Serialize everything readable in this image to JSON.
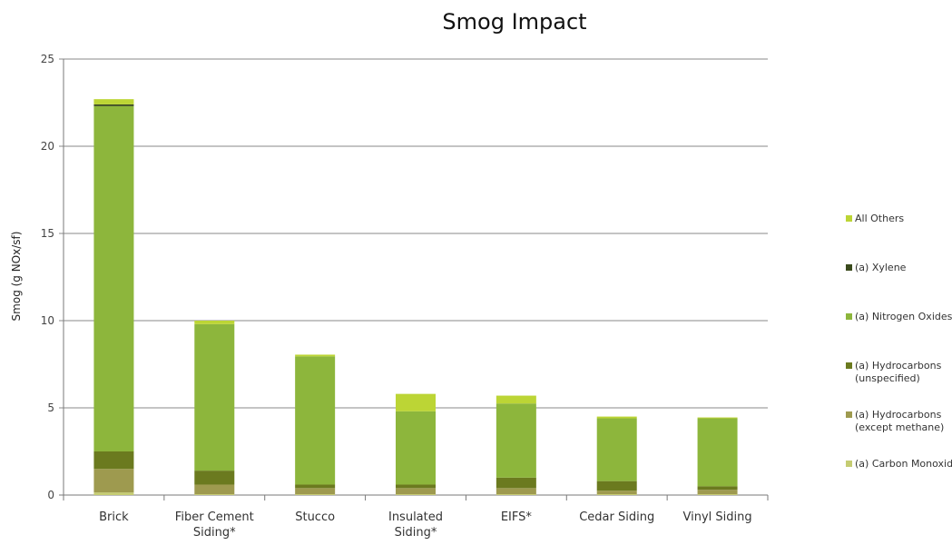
{
  "chart_data": {
    "type": "bar",
    "stacked": true,
    "title": "Smog Impact",
    "xlabel": "",
    "ylabel": "Smog (g NOx/sf)",
    "ylim": [
      0,
      25
    ],
    "yticks": [
      "0",
      "5",
      "10",
      "15",
      "20",
      "25"
    ],
    "grid": true,
    "legend_position": "right",
    "categories": [
      [
        "Brick"
      ],
      [
        "Fiber  Cement",
        "Siding*"
      ],
      [
        "Stucco"
      ],
      [
        "Insulated",
        "Siding*"
      ],
      [
        "EIFS*"
      ],
      [
        "Cedar Siding"
      ],
      [
        "Vinyl  Siding"
      ]
    ],
    "series": [
      {
        "name": "(a) Carbon Monoxide",
        "color": "#c5cc72",
        "values": [
          0.15,
          0.05,
          0.05,
          0.05,
          0.05,
          0.05,
          0.05
        ]
      },
      {
        "name": "(a) Hydrocarbons\n(except methane)",
        "color": "#9e9a4f",
        "values": [
          1.35,
          0.55,
          0.35,
          0.35,
          0.35,
          0.2,
          0.25
        ]
      },
      {
        "name": "(a) Hydrocarbons\n(unspecified)",
        "color": "#6b7a1f",
        "values": [
          1.0,
          0.8,
          0.2,
          0.2,
          0.6,
          0.55,
          0.2
        ]
      },
      {
        "name": "(a) Nitrogen Oxides",
        "color": "#8db63c",
        "values": [
          19.8,
          8.4,
          7.35,
          4.2,
          4.25,
          3.6,
          3.9
        ]
      },
      {
        "name": "(a) Xylene",
        "color": "#3a4a1c",
        "values": [
          0.1,
          0.0,
          0.0,
          0.0,
          0.0,
          0.0,
          0.0
        ]
      },
      {
        "name": "All Others",
        "color": "#bcd535",
        "values": [
          0.3,
          0.2,
          0.1,
          1.0,
          0.45,
          0.1,
          0.05
        ]
      }
    ]
  }
}
